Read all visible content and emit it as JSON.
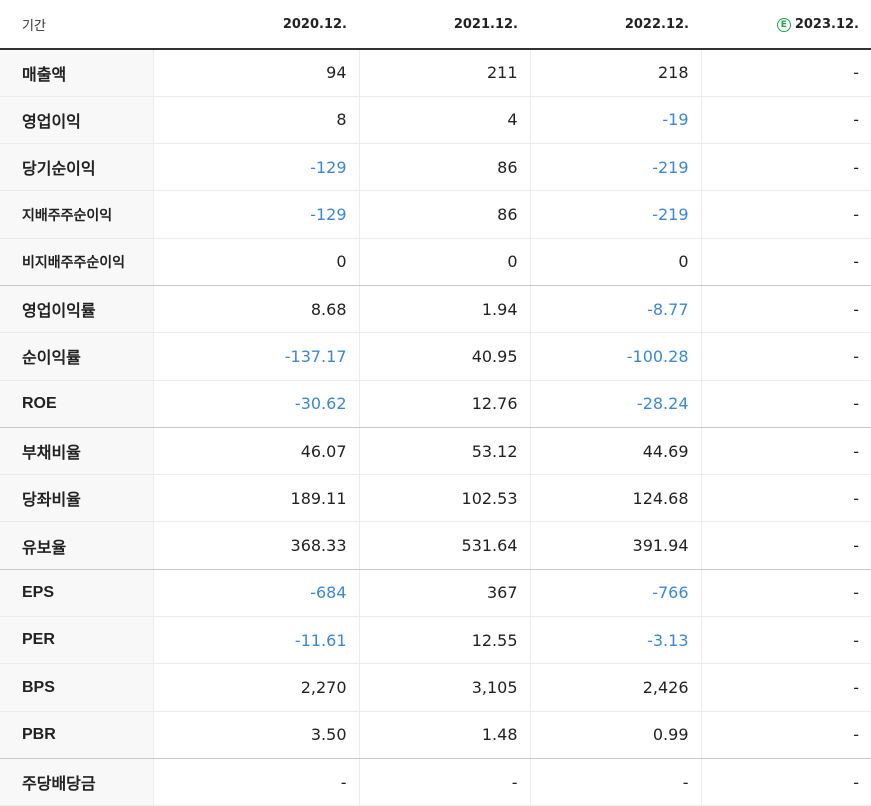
{
  "header": {
    "label": "기간",
    "periods": [
      "2020.12.",
      "2021.12.",
      "2022.12.",
      "2023.12."
    ],
    "estimate_badge": "E"
  },
  "colors": {
    "negative": "#3a87d8",
    "estimate": "#1fa64a"
  },
  "rows": [
    {
      "label": "매출액",
      "values": [
        "94",
        "211",
        "218",
        "-"
      ]
    },
    {
      "label": "영업이익",
      "values": [
        "8",
        "4",
        "-19",
        "-"
      ]
    },
    {
      "label": "당기순이익",
      "values": [
        "-129",
        "86",
        "-219",
        "-"
      ]
    },
    {
      "label": "지배주주순이익",
      "values": [
        "-129",
        "86",
        "-219",
        "-"
      ]
    },
    {
      "label": "비지배주주순이익",
      "values": [
        "0",
        "0",
        "0",
        "-"
      ]
    },
    {
      "label": "영업이익률",
      "values": [
        "8.68",
        "1.94",
        "-8.77",
        "-"
      ]
    },
    {
      "label": "순이익률",
      "values": [
        "-137.17",
        "40.95",
        "-100.28",
        "-"
      ]
    },
    {
      "label": "ROE",
      "values": [
        "-30.62",
        "12.76",
        "-28.24",
        "-"
      ]
    },
    {
      "label": "부채비율",
      "values": [
        "46.07",
        "53.12",
        "44.69",
        "-"
      ]
    },
    {
      "label": "당좌비율",
      "values": [
        "189.11",
        "102.53",
        "124.68",
        "-"
      ]
    },
    {
      "label": "유보율",
      "values": [
        "368.33",
        "531.64",
        "391.94",
        "-"
      ]
    },
    {
      "label": "EPS",
      "values": [
        "-684",
        "367",
        "-766",
        "-"
      ]
    },
    {
      "label": "PER",
      "values": [
        "-11.61",
        "12.55",
        "-3.13",
        "-"
      ]
    },
    {
      "label": "BPS",
      "values": [
        "2,270",
        "3,105",
        "2,426",
        "-"
      ]
    },
    {
      "label": "PBR",
      "values": [
        "3.50",
        "1.48",
        "0.99",
        "-"
      ]
    },
    {
      "label": "주당배당금",
      "values": [
        "-",
        "-",
        "-",
        "-"
      ]
    }
  ]
}
